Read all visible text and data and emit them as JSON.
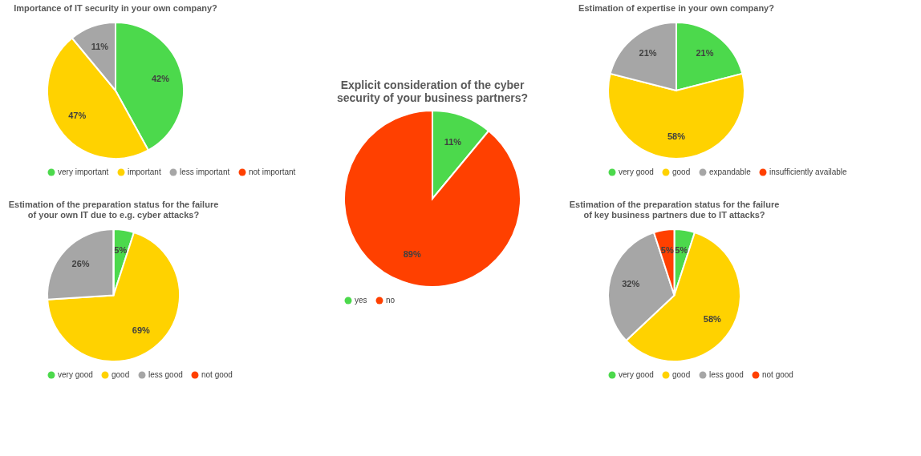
{
  "chart_data": [
    {
      "type": "pie",
      "title": "Importance of IT security in your own company?",
      "categories": [
        "very important",
        "important",
        "less important",
        "not important"
      ],
      "values": [
        42,
        47,
        11,
        0
      ],
      "colors": [
        "#4cd94c",
        "#ffd200",
        "#a6a6a6",
        "#ff4000"
      ],
      "value_labels": [
        "42%",
        "47%",
        "11%",
        null
      ],
      "legend": "bottom"
    },
    {
      "type": "pie",
      "title": "Explicit consideration of the cyber\nsecurity of your business partners?",
      "categories": [
        "yes",
        "no"
      ],
      "values": [
        11,
        89
      ],
      "colors": [
        "#4cd94c",
        "#ff4000"
      ],
      "value_labels": [
        "11%",
        "89%"
      ],
      "legend": "bottom"
    },
    {
      "type": "pie",
      "title": "Estimation of expertise in your own company?",
      "categories": [
        "very good",
        "good",
        "expandable",
        "insufficiently available"
      ],
      "values": [
        21,
        58,
        21,
        0
      ],
      "colors": [
        "#4cd94c",
        "#ffd200",
        "#a6a6a6",
        "#ff4000"
      ],
      "value_labels": [
        "21%",
        "58%",
        "21%",
        null
      ],
      "legend": "bottom"
    },
    {
      "type": "pie",
      "title": "Estimation of the preparation status for the failure\nof your own IT due to e.g. cyber attacks?",
      "categories": [
        "very good",
        "good",
        "less good",
        "not good"
      ],
      "values": [
        5,
        69,
        26,
        0
      ],
      "colors": [
        "#4cd94c",
        "#ffd200",
        "#a6a6a6",
        "#ff4000"
      ],
      "value_labels": [
        "5%",
        "69%",
        "26%",
        null
      ],
      "legend": "bottom"
    },
    {
      "type": "pie",
      "title": "Estimation of the preparation status for the failure\nof key business partners due to IT attacks?",
      "categories": [
        "very good",
        "good",
        "less good",
        "not good"
      ],
      "values": [
        5,
        58,
        32,
        5
      ],
      "colors": [
        "#4cd94c",
        "#ffd200",
        "#a6a6a6",
        "#ff4000"
      ],
      "value_labels": [
        "5%",
        "58%",
        "32%",
        "5%"
      ],
      "legend": "bottom"
    }
  ]
}
